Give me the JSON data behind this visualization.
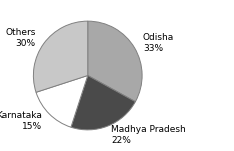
{
  "labels": [
    "Odisha\n33%",
    "Madhya Pradesh\n22%",
    "Karnataka\n15%",
    "Others\n30%"
  ],
  "sizes": [
    33,
    22,
    15,
    30
  ],
  "colors": [
    "#a8a8a8",
    "#4a4a4a",
    "#ffffff",
    "#c8c8c8"
  ],
  "edge_color": "#808080",
  "edge_width": 0.7,
  "startangle": 90,
  "background_color": "#ffffff",
  "label_fontsize": 6.5,
  "labeldistance": 1.18
}
